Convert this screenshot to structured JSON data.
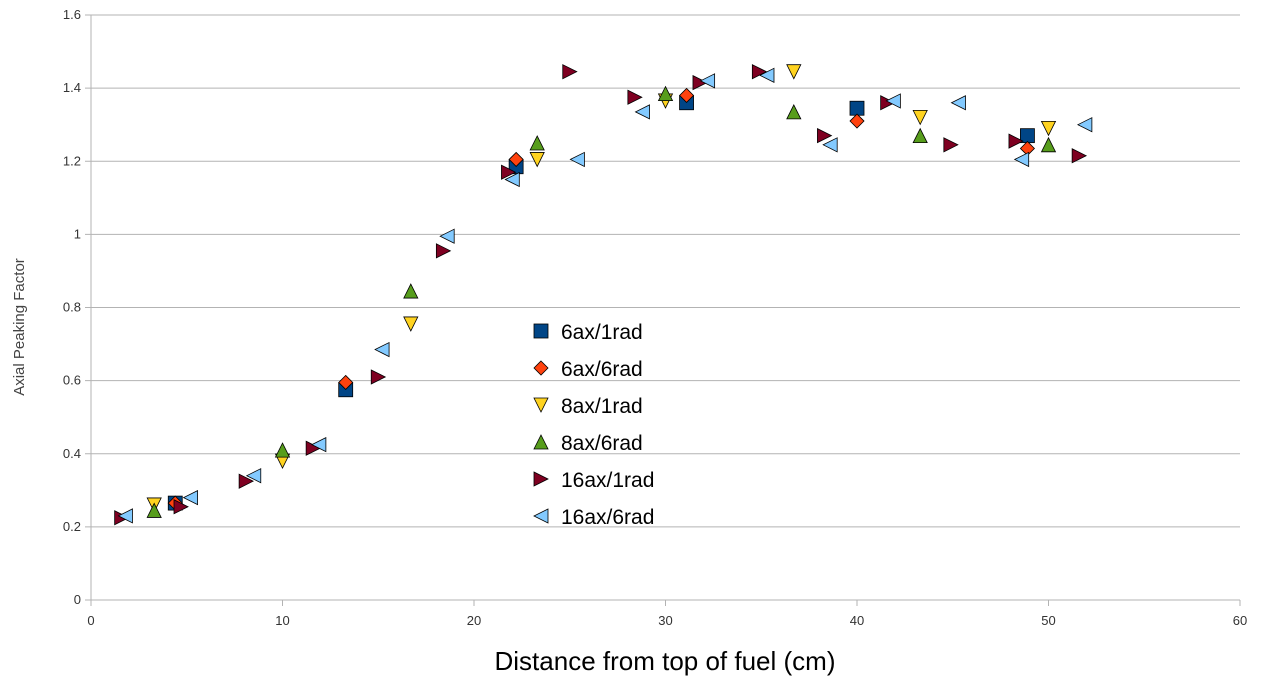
{
  "chart_data": {
    "type": "scatter",
    "title": "",
    "xlabel": "Distance from top of fuel (cm)",
    "ylabel": "Axial Peaking Factor",
    "xlim": [
      0,
      60
    ],
    "ylim": [
      0,
      1.6
    ],
    "x_ticks": [
      "0",
      "10",
      "20",
      "30",
      "40",
      "50",
      "60"
    ],
    "y_ticks": [
      "0",
      "0.2",
      "0.4",
      "0.6",
      "0.8",
      "1",
      "1.2",
      "1.4",
      "1.6"
    ],
    "grid": "horizontal",
    "legend_position": "center",
    "series": [
      {
        "name": "6ax/1rad",
        "marker": "square",
        "color": "#004586",
        "points": [
          [
            4.4,
            0.265
          ],
          [
            13.3,
            0.575
          ],
          [
            22.2,
            1.185
          ],
          [
            31.1,
            1.36
          ],
          [
            40.0,
            1.345
          ],
          [
            48.9,
            1.27
          ]
        ]
      },
      {
        "name": "6ax/6rad",
        "marker": "diamond",
        "color": "#ff420e",
        "points": [
          [
            4.4,
            0.265
          ],
          [
            13.3,
            0.595
          ],
          [
            22.2,
            1.205
          ],
          [
            31.1,
            1.38
          ],
          [
            40.0,
            1.31
          ],
          [
            48.9,
            1.235
          ]
        ]
      },
      {
        "name": "8ax/1rad",
        "marker": "triangle-down",
        "color": "#ffd320",
        "points": [
          [
            3.3,
            0.26
          ],
          [
            10.0,
            0.38
          ],
          [
            16.7,
            0.755
          ],
          [
            23.3,
            1.205
          ],
          [
            30.0,
            1.365
          ],
          [
            36.7,
            1.445
          ],
          [
            43.3,
            1.32
          ],
          [
            50.0,
            1.29
          ]
        ]
      },
      {
        "name": "8ax/6rad",
        "marker": "triangle-up",
        "color": "#579d1c",
        "points": [
          [
            3.3,
            0.245
          ],
          [
            10.0,
            0.41
          ],
          [
            16.7,
            0.845
          ],
          [
            23.3,
            1.25
          ],
          [
            30.0,
            1.385
          ],
          [
            36.7,
            1.335
          ],
          [
            43.3,
            1.27
          ],
          [
            50.0,
            1.245
          ]
        ]
      },
      {
        "name": "16ax/1rad",
        "marker": "triangle-right",
        "color": "#7e0021",
        "points": [
          [
            1.6,
            0.225
          ],
          [
            4.7,
            0.255
          ],
          [
            8.1,
            0.325
          ],
          [
            11.6,
            0.415
          ],
          [
            15.0,
            0.61
          ],
          [
            18.4,
            0.955
          ],
          [
            21.8,
            1.17
          ],
          [
            25.0,
            1.445
          ],
          [
            28.4,
            1.375
          ],
          [
            31.8,
            1.415
          ],
          [
            34.9,
            1.445
          ],
          [
            38.3,
            1.27
          ],
          [
            41.6,
            1.36
          ],
          [
            44.9,
            1.245
          ],
          [
            48.3,
            1.255
          ],
          [
            51.6,
            1.215
          ]
        ]
      },
      {
        "name": "16ax/6rad",
        "marker": "triangle-left",
        "color": "#83caff",
        "points": [
          [
            1.8,
            0.23
          ],
          [
            5.2,
            0.28
          ],
          [
            8.5,
            0.34
          ],
          [
            11.9,
            0.425
          ],
          [
            15.2,
            0.685
          ],
          [
            18.6,
            0.995
          ],
          [
            22.0,
            1.15
          ],
          [
            25.4,
            1.205
          ],
          [
            28.8,
            1.335
          ],
          [
            32.2,
            1.42
          ],
          [
            35.3,
            1.435
          ],
          [
            38.6,
            1.245
          ],
          [
            41.9,
            1.365
          ],
          [
            45.3,
            1.36
          ],
          [
            48.6,
            1.205
          ],
          [
            51.9,
            1.3
          ]
        ]
      }
    ]
  }
}
